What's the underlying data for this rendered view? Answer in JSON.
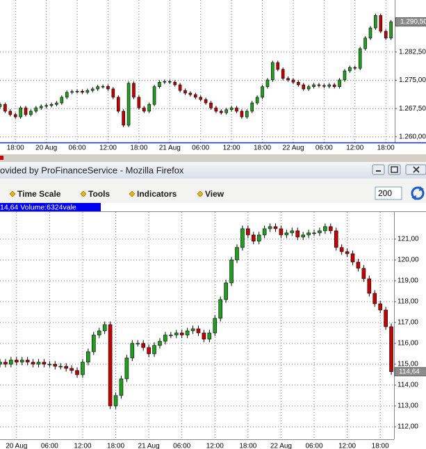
{
  "chart_data": [
    {
      "type": "candlestick",
      "xlim": [
        0,
        77
      ],
      "ylim": [
        1.2585,
        1.2963
      ],
      "xticks": [
        {
          "value": 3,
          "label": "18:00"
        },
        {
          "value": 9,
          "label": "20 Aug"
        },
        {
          "value": 15,
          "label": "06:00"
        },
        {
          "value": 21,
          "label": "12:00"
        },
        {
          "value": 27,
          "label": "18:00"
        },
        {
          "value": 33,
          "label": "21 Aug"
        },
        {
          "value": 39,
          "label": "06:00"
        },
        {
          "value": 45,
          "label": "12:00"
        },
        {
          "value": 51,
          "label": "18:00"
        },
        {
          "value": 57,
          "label": "22 Aug"
        },
        {
          "value": 63,
          "label": "06:00"
        },
        {
          "value": 69,
          "label": "12:00"
        },
        {
          "value": 75,
          "label": "18:00"
        }
      ],
      "yticks": [
        {
          "value": 1.2825,
          "label": "1.282,50"
        },
        {
          "value": 1.275,
          "label": "1.275,00"
        },
        {
          "value": 1.2675,
          "label": "1.267,50"
        },
        {
          "value": 1.26,
          "label": "1.260,00"
        }
      ],
      "grid": true,
      "up_color": "#1f9e1f",
      "down_color": "#c40000",
      "last_price": {
        "value": 1.2905,
        "label": "1.290,50"
      },
      "open": [
        1.268,
        1.2686,
        1.2668,
        1.2659,
        1.2653,
        1.2677,
        1.2659,
        1.2668,
        1.2677,
        1.2681,
        1.2683,
        1.2686,
        1.269,
        1.2705,
        1.2718,
        1.272,
        1.2721,
        1.2718,
        1.2723,
        1.2727,
        1.2733,
        1.2734,
        1.2727,
        1.2705,
        1.2668,
        1.2631,
        1.2742,
        1.2705,
        1.2677,
        1.2668,
        1.2686,
        1.2733,
        1.2745,
        1.2747,
        1.2745,
        1.2738,
        1.2723,
        1.2716,
        1.2712,
        1.2705,
        1.2699,
        1.269,
        1.2677,
        1.2668,
        1.2664,
        1.2672,
        1.2677,
        1.2668,
        1.2653,
        1.2668,
        1.269,
        1.2705,
        1.2733,
        1.2751,
        1.2797,
        1.2779,
        1.2755,
        1.2751,
        1.2745,
        1.2738,
        1.2727,
        1.2733,
        1.2738,
        1.2736,
        1.2734,
        1.2738,
        1.2733,
        1.2751,
        1.2775,
        1.2784,
        1.2782,
        1.2834,
        1.2862,
        1.2889,
        1.2922,
        1.288,
        1.2862
      ],
      "high": [
        1.2691,
        1.2691,
        1.2673,
        1.2664,
        1.2682,
        1.2682,
        1.2673,
        1.2682,
        1.2686,
        1.2688,
        1.2691,
        1.2695,
        1.271,
        1.2723,
        1.2725,
        1.2726,
        1.2726,
        1.2728,
        1.2732,
        1.2738,
        1.2739,
        1.2739,
        1.2732,
        1.271,
        1.2673,
        1.2747,
        1.2747,
        1.271,
        1.2682,
        1.2691,
        1.2738,
        1.275,
        1.2752,
        1.2752,
        1.275,
        1.2743,
        1.2728,
        1.2721,
        1.2717,
        1.271,
        1.2704,
        1.2695,
        1.2682,
        1.2673,
        1.2677,
        1.2682,
        1.2682,
        1.2673,
        1.2673,
        1.2695,
        1.271,
        1.2738,
        1.2756,
        1.2802,
        1.2802,
        1.2784,
        1.276,
        1.2756,
        1.275,
        1.2743,
        1.2738,
        1.2743,
        1.2743,
        1.2741,
        1.2743,
        1.2743,
        1.2756,
        1.278,
        1.2789,
        1.2789,
        1.2839,
        1.2867,
        1.2894,
        1.2927,
        1.2927,
        1.2885,
        1.291
      ],
      "low": [
        1.2675,
        1.2663,
        1.2654,
        1.2648,
        1.2648,
        1.2654,
        1.2654,
        1.2663,
        1.2672,
        1.2676,
        1.2678,
        1.2681,
        1.2685,
        1.27,
        1.2713,
        1.2715,
        1.2713,
        1.2713,
        1.2718,
        1.2722,
        1.2728,
        1.2722,
        1.27,
        1.2663,
        1.2626,
        1.2626,
        1.27,
        1.2672,
        1.2663,
        1.2663,
        1.2681,
        1.2728,
        1.274,
        1.274,
        1.2733,
        1.2718,
        1.2711,
        1.2707,
        1.27,
        1.2694,
        1.2685,
        1.2672,
        1.2663,
        1.2659,
        1.2659,
        1.2667,
        1.2663,
        1.2648,
        1.2648,
        1.2663,
        1.2685,
        1.27,
        1.2728,
        1.2746,
        1.2774,
        1.275,
        1.2746,
        1.274,
        1.2733,
        1.2722,
        1.2722,
        1.2728,
        1.2731,
        1.2729,
        1.2729,
        1.2728,
        1.2728,
        1.2746,
        1.277,
        1.2777,
        1.2777,
        1.2829,
        1.2857,
        1.2884,
        1.2875,
        1.2857,
        1.2857
      ],
      "close": [
        1.2686,
        1.2668,
        1.2659,
        1.2653,
        1.2677,
        1.2659,
        1.2668,
        1.2677,
        1.2681,
        1.2683,
        1.2686,
        1.269,
        1.2705,
        1.2718,
        1.272,
        1.2721,
        1.2718,
        1.2723,
        1.2727,
        1.2733,
        1.2734,
        1.2727,
        1.2705,
        1.2668,
        1.2631,
        1.2742,
        1.2705,
        1.2677,
        1.2668,
        1.2686,
        1.2733,
        1.2745,
        1.2747,
        1.2745,
        1.2738,
        1.2723,
        1.2716,
        1.2712,
        1.2705,
        1.2699,
        1.269,
        1.2677,
        1.2668,
        1.2664,
        1.2672,
        1.2677,
        1.2668,
        1.2653,
        1.2668,
        1.269,
        1.2705,
        1.2733,
        1.2751,
        1.2797,
        1.2779,
        1.2755,
        1.2751,
        1.2745,
        1.2738,
        1.2727,
        1.2733,
        1.2738,
        1.2736,
        1.2734,
        1.2738,
        1.2733,
        1.2751,
        1.2775,
        1.2784,
        1.2782,
        1.2834,
        1.2862,
        1.2889,
        1.2922,
        1.288,
        1.2862,
        1.2905
      ]
    },
    {
      "type": "candlestick",
      "xlim": [
        0,
        71.5
      ],
      "ylim": [
        111.4,
        122.3
      ],
      "xticks": [
        {
          "value": 3,
          "label": "20 Aug"
        },
        {
          "value": 9,
          "label": "06:00"
        },
        {
          "value": 15,
          "label": "12:00"
        },
        {
          "value": 21,
          "label": "18:00"
        },
        {
          "value": 27,
          "label": "21 Aug"
        },
        {
          "value": 33,
          "label": "06:00"
        },
        {
          "value": 39,
          "label": "12:00"
        },
        {
          "value": 45,
          "label": "18:00"
        },
        {
          "value": 51,
          "label": "22 Aug"
        },
        {
          "value": 57,
          "label": "06:00"
        },
        {
          "value": 63,
          "label": "12:00"
        },
        {
          "value": 69,
          "label": "18:00"
        }
      ],
      "yticks": [
        {
          "value": 121,
          "label": "121,00"
        },
        {
          "value": 120,
          "label": "120,00"
        },
        {
          "value": 119,
          "label": "119,00"
        },
        {
          "value": 118,
          "label": "118,00"
        },
        {
          "value": 117,
          "label": "117,00"
        },
        {
          "value": 116,
          "label": "116,00"
        },
        {
          "value": 115,
          "label": "115,00"
        },
        {
          "value": 114,
          "label": "114,00"
        },
        {
          "value": 113,
          "label": "113,00"
        },
        {
          "value": 112,
          "label": "112,00"
        }
      ],
      "grid": true,
      "up_color": "#1f9e1f",
      "down_color": "#c40000",
      "last_price": {
        "value": 114.64,
        "label": "114,64"
      },
      "open": [
        115.0,
        115.1,
        115.0,
        115.2,
        115.1,
        115.2,
        115.1,
        115.0,
        115.1,
        115.0,
        115.0,
        114.9,
        114.9,
        114.8,
        114.7,
        114.5,
        115.1,
        115.6,
        116.4,
        116.6,
        116.9,
        113.0,
        113.5,
        114.3,
        115.3,
        116.0,
        116.0,
        115.8,
        115.5,
        115.9,
        116.1,
        116.4,
        116.4,
        116.5,
        116.4,
        116.6,
        116.7,
        116.5,
        116.2,
        116.5,
        117.2,
        118.1,
        118.9,
        120.0,
        120.6,
        121.5,
        121.2,
        120.9,
        121.2,
        121.5,
        121.6,
        121.5,
        121.2,
        121.3,
        121.4,
        121.1,
        121.2,
        121.3,
        121.3,
        121.4,
        121.6,
        121.4,
        120.6,
        120.4,
        120.3,
        119.9,
        119.6,
        119.1,
        118.4,
        117.9,
        117.6,
        116.8
      ],
      "high": [
        115.25,
        115.25,
        115.35,
        115.35,
        115.35,
        115.35,
        115.25,
        115.25,
        115.25,
        115.15,
        115.15,
        115.05,
        115.05,
        114.95,
        114.85,
        115.25,
        115.75,
        116.55,
        116.75,
        117.05,
        117.05,
        113.65,
        114.45,
        115.45,
        116.15,
        116.15,
        116.15,
        115.95,
        116.05,
        116.25,
        116.55,
        116.55,
        116.65,
        116.65,
        116.75,
        116.85,
        116.85,
        116.65,
        116.65,
        117.35,
        118.25,
        119.05,
        120.15,
        120.75,
        121.65,
        121.65,
        121.35,
        121.35,
        121.65,
        121.75,
        121.75,
        121.65,
        121.45,
        121.55,
        121.55,
        121.35,
        121.45,
        121.45,
        121.55,
        121.75,
        121.75,
        121.55,
        120.75,
        120.55,
        120.45,
        120.05,
        119.75,
        119.25,
        118.55,
        118.05,
        117.75,
        116.95
      ],
      "low": [
        114.85,
        114.85,
        114.85,
        114.95,
        114.95,
        114.95,
        114.85,
        114.85,
        114.85,
        114.85,
        114.75,
        114.75,
        114.65,
        114.55,
        114.35,
        114.35,
        114.95,
        115.45,
        116.25,
        116.45,
        112.85,
        112.85,
        113.35,
        114.15,
        115.15,
        115.85,
        115.65,
        115.35,
        115.35,
        115.75,
        115.95,
        116.25,
        116.25,
        116.25,
        116.25,
        116.45,
        116.35,
        116.05,
        116.05,
        116.35,
        117.05,
        117.95,
        118.75,
        119.85,
        120.45,
        121.05,
        120.75,
        120.75,
        121.05,
        121.35,
        121.35,
        121.05,
        121.05,
        121.15,
        120.95,
        120.95,
        121.05,
        121.15,
        121.15,
        121.25,
        121.25,
        120.45,
        120.25,
        120.15,
        119.75,
        119.45,
        118.95,
        118.25,
        117.75,
        117.45,
        116.65,
        114.49
      ],
      "close": [
        115.1,
        115.0,
        115.2,
        115.1,
        115.2,
        115.1,
        115.0,
        115.1,
        115.0,
        115.0,
        114.9,
        114.9,
        114.8,
        114.7,
        114.5,
        115.1,
        115.6,
        116.4,
        116.6,
        116.9,
        113.0,
        113.5,
        114.3,
        115.3,
        116.0,
        116.0,
        115.8,
        115.5,
        115.9,
        116.1,
        116.4,
        116.4,
        116.5,
        116.4,
        116.6,
        116.7,
        116.5,
        116.2,
        116.5,
        117.2,
        118.1,
        118.9,
        120.0,
        120.6,
        121.5,
        121.2,
        120.9,
        121.2,
        121.5,
        121.6,
        121.5,
        121.2,
        121.3,
        121.4,
        121.1,
        121.2,
        121.3,
        121.3,
        121.4,
        121.6,
        121.4,
        120.6,
        120.4,
        120.3,
        119.9,
        119.6,
        119.1,
        118.4,
        117.9,
        117.6,
        116.8,
        114.64
      ]
    }
  ],
  "window": {
    "title": "ovided by ProFinanceService - Mozilla Firefox",
    "menu": [
      "Time Scale",
      "Tools",
      "Indicators",
      "View"
    ],
    "bars": "200",
    "info": "14,64 Volume:6324vale"
  }
}
